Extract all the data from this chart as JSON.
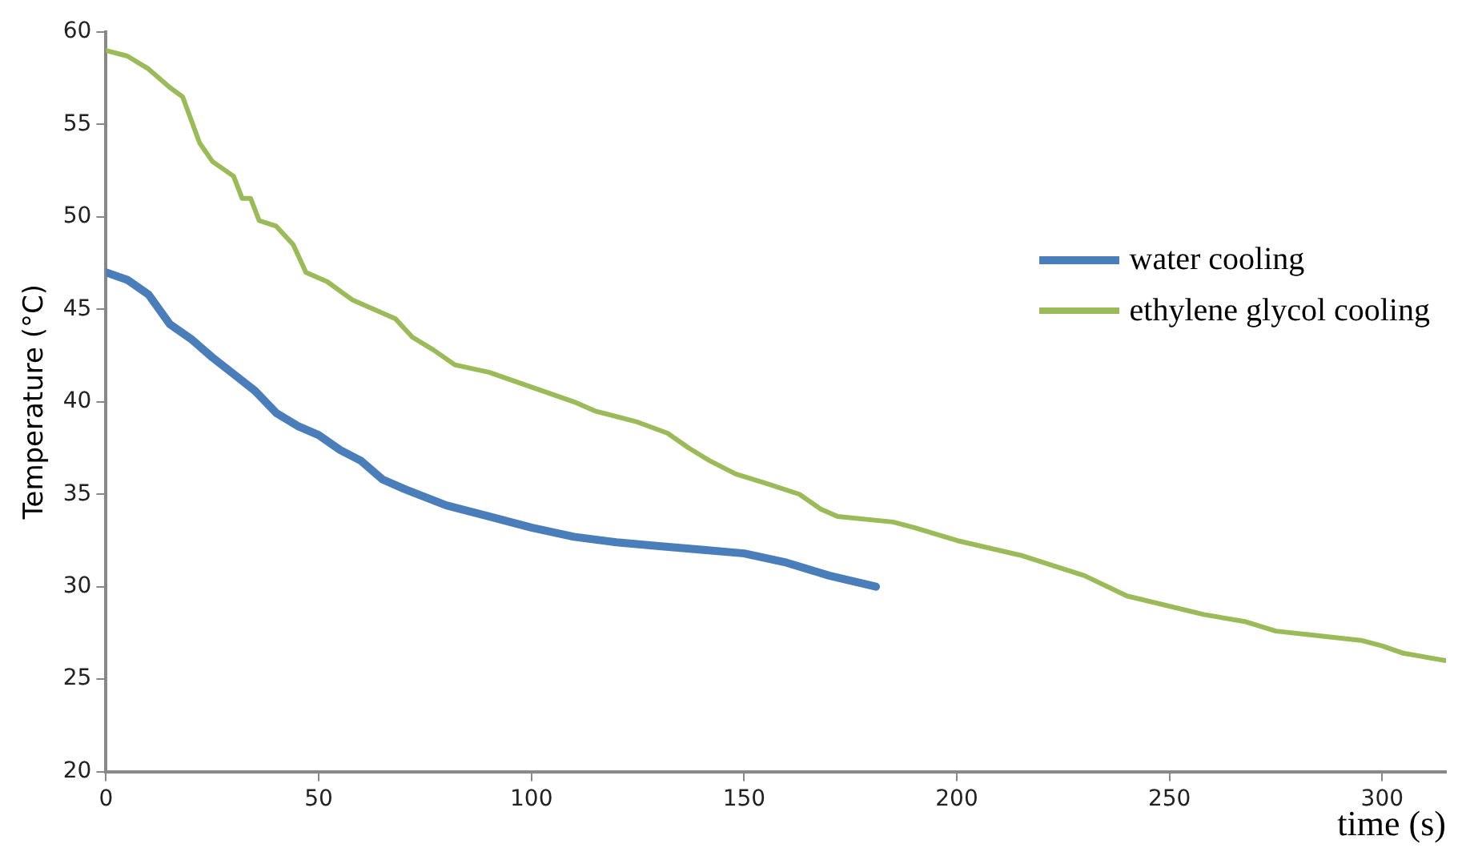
{
  "chart_data": {
    "type": "line",
    "xlabel": "time (s)",
    "ylabel": "Temperature (°C)",
    "xlim": [
      0,
      315
    ],
    "xticks": [
      0,
      50,
      100,
      150,
      200,
      250,
      300
    ],
    "ylim": [
      20,
      60
    ],
    "yticks": [
      20,
      25,
      30,
      35,
      40,
      45,
      50,
      55,
      60
    ],
    "grid": false,
    "legend": "right",
    "marker": "none",
    "line_style": "solid",
    "series": [
      {
        "name": "water cooling",
        "color": "#4a7ebb",
        "x": [
          0,
          5,
          10,
          15,
          20,
          25,
          30,
          35,
          40,
          45,
          50,
          55,
          60,
          65,
          70,
          80,
          90,
          100,
          110,
          120,
          130,
          140,
          150,
          160,
          170,
          181
        ],
        "values": [
          47,
          46.6,
          45.8,
          44.2,
          43.4,
          42.4,
          41.5,
          40.6,
          39.4,
          38.7,
          38.2,
          37.4,
          36.8,
          35.8,
          35.3,
          34.4,
          33.8,
          33.2,
          32.7,
          32.4,
          32.2,
          32,
          31.8,
          31.3,
          30.6,
          30
        ]
      },
      {
        "name": "ethylene glycol cooling",
        "color": "#9bbb59",
        "x": [
          0,
          5,
          10,
          15,
          18,
          22,
          25,
          30,
          32,
          34,
          36,
          40,
          44,
          47,
          52,
          58,
          65,
          68,
          72,
          77,
          82,
          90,
          100,
          110,
          115,
          125,
          132,
          137,
          142,
          148,
          155,
          163,
          168,
          172,
          185,
          190,
          200,
          215,
          230,
          240,
          258,
          268,
          275,
          283,
          295,
          300,
          305,
          315
        ],
        "values": [
          59,
          58.7,
          58,
          57,
          56.5,
          54,
          53,
          52.2,
          51,
          51,
          49.8,
          49.5,
          48.5,
          47,
          46.5,
          45.5,
          44.8,
          44.5,
          43.5,
          42.8,
          42,
          41.6,
          40.8,
          40,
          39.5,
          38.9,
          38.3,
          37.5,
          36.8,
          36.1,
          35.6,
          35,
          34.2,
          33.8,
          33.5,
          33.2,
          32.5,
          31.7,
          30.6,
          29.5,
          28.5,
          28.1,
          27.6,
          27.4,
          27.1,
          26.8,
          26.4,
          26
        ]
      }
    ]
  }
}
